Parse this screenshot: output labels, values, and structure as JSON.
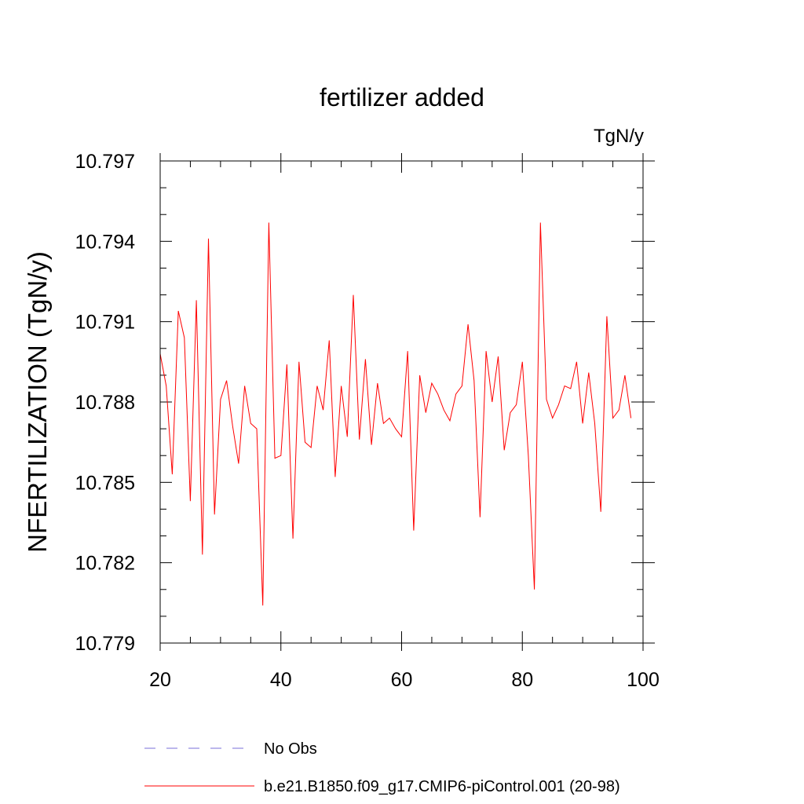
{
  "chart_data": {
    "type": "line",
    "title": "fertilizer added",
    "units_label": "TgN/y",
    "ylabel": "NFERTILIZATION  (TgN/y)",
    "xlabel": "",
    "xlim": [
      20,
      100
    ],
    "ylim": [
      10.779,
      10.797
    ],
    "x_ticks": [
      20,
      40,
      60,
      80,
      100
    ],
    "x_tick_labels": [
      "20",
      "40",
      "60",
      "80",
      "100"
    ],
    "y_ticks": [
      10.779,
      10.782,
      10.785,
      10.788,
      10.791,
      10.794,
      10.797
    ],
    "y_tick_labels": [
      "10.779",
      "10.782",
      "10.785",
      "10.788",
      "10.791",
      "10.794",
      "10.797"
    ],
    "grid": false,
    "series": [
      {
        "name": "b.e21.B1850.f09_g17.CMIP6-piControl.001 (20-98)",
        "color": "#ff0000",
        "x": [
          20,
          21,
          22,
          23,
          24,
          25,
          26,
          27,
          28,
          29,
          30,
          31,
          32,
          33,
          34,
          35,
          36,
          37,
          38,
          39,
          40,
          41,
          42,
          43,
          44,
          45,
          46,
          47,
          48,
          49,
          50,
          51,
          52,
          53,
          54,
          55,
          56,
          57,
          58,
          59,
          60,
          61,
          62,
          63,
          64,
          65,
          66,
          67,
          68,
          69,
          70,
          71,
          72,
          73,
          74,
          75,
          76,
          77,
          78,
          79,
          80,
          81,
          82,
          83,
          84,
          85,
          86,
          87,
          88,
          89,
          90,
          91,
          92,
          93,
          94,
          95,
          96,
          97,
          98
        ],
        "values": [
          10.7898,
          10.7886,
          10.7853,
          10.7914,
          10.7904,
          10.7843,
          10.7918,
          10.7823,
          10.7941,
          10.7838,
          10.7881,
          10.7888,
          10.7871,
          10.7857,
          10.7886,
          10.7872,
          10.787,
          10.7804,
          10.7947,
          10.7859,
          10.786,
          10.7894,
          10.7829,
          10.7895,
          10.7865,
          10.7863,
          10.7886,
          10.7877,
          10.7903,
          10.7852,
          10.7886,
          10.7867,
          10.792,
          10.7866,
          10.7896,
          10.7864,
          10.7887,
          10.7872,
          10.7874,
          10.787,
          10.7867,
          10.7899,
          10.7832,
          10.789,
          10.7876,
          10.7887,
          10.7883,
          10.7877,
          10.7873,
          10.7883,
          10.7886,
          10.7909,
          10.7888,
          10.7837,
          10.7899,
          10.788,
          10.7897,
          10.7862,
          10.7876,
          10.7879,
          10.7895,
          10.786,
          10.781,
          10.7947,
          10.7881,
          10.7874,
          10.7879,
          10.7886,
          10.7885,
          10.7895,
          10.7872,
          10.7891,
          10.7872,
          10.7839,
          10.7912,
          10.7874,
          10.7877,
          10.789,
          10.7874
        ]
      }
    ],
    "legend": {
      "placement": "bottom",
      "entries": [
        {
          "label": "No Obs",
          "style": "dashed",
          "color": "#7a6fd8"
        },
        {
          "label": "b.e21.B1850.f09_g17.CMIP6-piControl.001 (20-98)",
          "style": "solid",
          "color": "#ff0000"
        }
      ]
    }
  }
}
